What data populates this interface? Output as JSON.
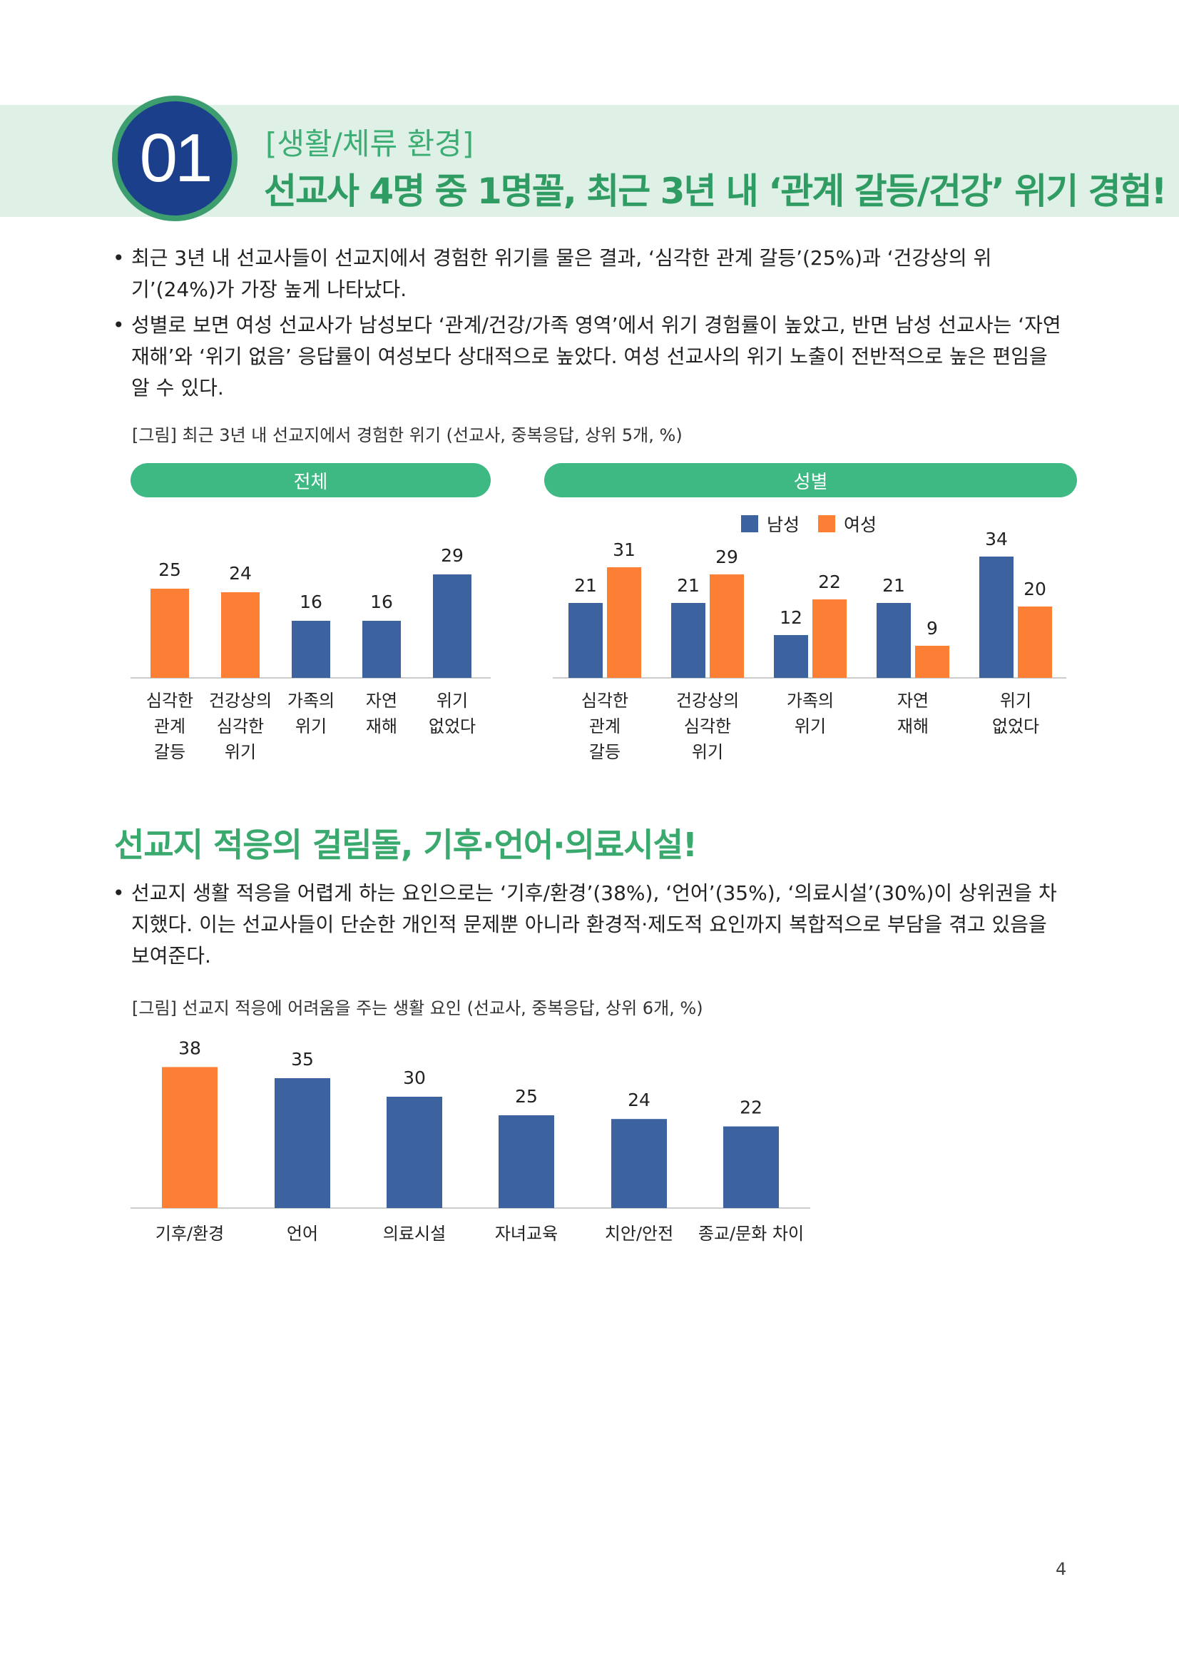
{
  "header": {
    "number": "01",
    "kicker": "[생활/체류 환경]",
    "headline": "선교사 4명 중 1명꼴, 최근 3년 내 ‘관계 갈등/건강’ 위기 경험!"
  },
  "bullets_section1": [
    "최근 3년 내 선교사들이 선교지에서 경험한 위기를 물은 결과, ‘심각한 관계 갈등’(25%)과 ‘건강상의 위기’(24%)가 가장 높게 나타났다.",
    "성별로 보면 여성 선교사가 남성보다 ‘관계/건강/가족 영역’에서 위기 경험률이 높았고, 반면 남성 선교사는 ‘자연재해’와 ‘위기 없음’ 응답률이 여성보다 상대적으로 높았다. 여성 선교사의 위기 노출이 전반적으로 높은 편임을 알 수 있다."
  ],
  "bullet_symbol": "•",
  "figure1": {
    "caption": "[그림] 최근 3년 내 선교지에서 경험한 위기 (선교사, 중복응답, 상위 5개, %)",
    "pill_total": "전체",
    "pill_gender": "성별",
    "legend_male": "남성",
    "legend_female": "여성"
  },
  "colors": {
    "orange": "#fd7f35",
    "blue": "#3c63a0",
    "green": "#3fb983",
    "axis": "#cccccc"
  },
  "chart_data": [
    {
      "type": "bar",
      "title": "전체",
      "categories": [
        [
          "심각한",
          "관계",
          "갈등"
        ],
        [
          "건강상의",
          "심각한",
          "위기"
        ],
        [
          "가족의",
          "위기"
        ],
        [
          "자연",
          "재해"
        ],
        [
          "위기",
          "없었다"
        ]
      ],
      "values": [
        25,
        24,
        16,
        16,
        29
      ],
      "highlight": [
        true,
        true,
        false,
        false,
        false
      ],
      "ylim": [
        0,
        40
      ]
    },
    {
      "type": "bar",
      "title": "성별",
      "categories": [
        [
          "심각한",
          "관계",
          "갈등"
        ],
        [
          "건강상의",
          "심각한",
          "위기"
        ],
        [
          "가족의",
          "위기"
        ],
        [
          "자연",
          "재해"
        ],
        [
          "위기",
          "없었다"
        ]
      ],
      "series": [
        {
          "name": "남성",
          "values": [
            21,
            21,
            12,
            21,
            34
          ]
        },
        {
          "name": "여성",
          "values": [
            31,
            29,
            22,
            9,
            20
          ]
        }
      ],
      "legend": "top",
      "ylim": [
        0,
        40
      ]
    },
    {
      "type": "bar",
      "categories": [
        [
          "기후/환경"
        ],
        [
          "언어"
        ],
        [
          "의료시설"
        ],
        [
          "자녀교육"
        ],
        [
          "치안/안전"
        ],
        [
          "종교/문화 차이"
        ]
      ],
      "values": [
        38,
        35,
        30,
        25,
        24,
        22
      ],
      "highlight": [
        true,
        false,
        false,
        false,
        false,
        false
      ],
      "ylim": [
        0,
        40
      ]
    }
  ],
  "section2": {
    "title": "선교지 적응의 걸림돌, 기후·언어·의료시설!",
    "bullet": "선교지 생활 적응을 어렵게 하는 요인으로는 ‘기후/환경’(38%), ‘언어’(35%), ‘의료시설’(30%)이 상위권을 차지했다. 이는 선교사들이 단순한 개인적 문제뿐 아니라 환경적·제도적 요인까지 복합적으로 부담을 겪고 있음을 보여준다.",
    "caption": "[그림] 선교지 적응에 어려움을 주는 생활 요인 (선교사, 중복응답, 상위 6개, %)"
  },
  "page_number": "4"
}
